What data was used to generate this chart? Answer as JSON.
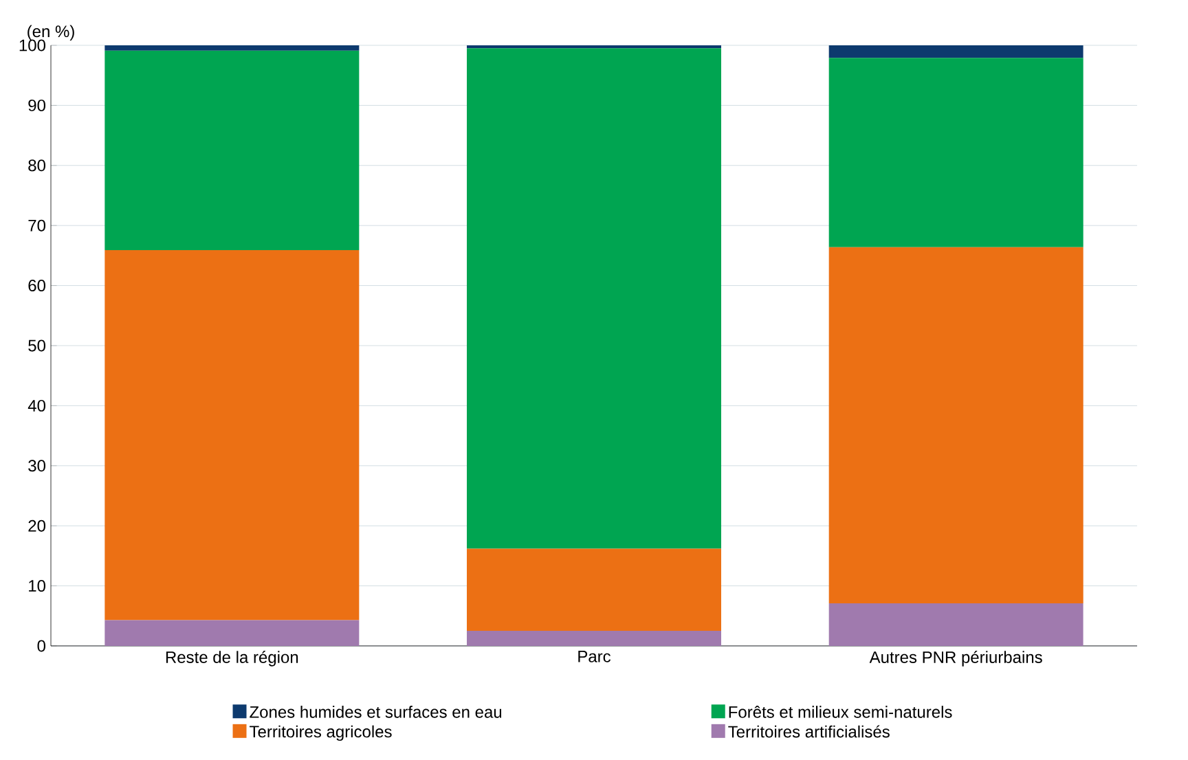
{
  "chart_data": {
    "type": "bar",
    "stacked": true,
    "ylabel": "(en %)",
    "categories": [
      "Reste de la région",
      "Parc",
      "Autres PNR périurbains"
    ],
    "series": [
      {
        "name": "Territoires artificialisés",
        "color": "#a07aae",
        "values": [
          4.3,
          2.5,
          7.1
        ]
      },
      {
        "name": "Territoires agricoles",
        "color": "#ec7014",
        "values": [
          61.6,
          13.7,
          59.3
        ]
      },
      {
        "name": "Forêts et milieux semi-naturels",
        "color": "#00a551",
        "values": [
          33.2,
          83.3,
          31.5
        ]
      },
      {
        "name": "Zones humides et surfaces en eau",
        "color": "#0d3a6e",
        "values": [
          0.9,
          0.5,
          2.1
        ]
      }
    ],
    "ylim": [
      0,
      100
    ],
    "yticks": [
      0,
      10,
      20,
      30,
      40,
      50,
      60,
      70,
      80,
      90,
      100
    ],
    "grid": "y",
    "legend": "bottom"
  }
}
